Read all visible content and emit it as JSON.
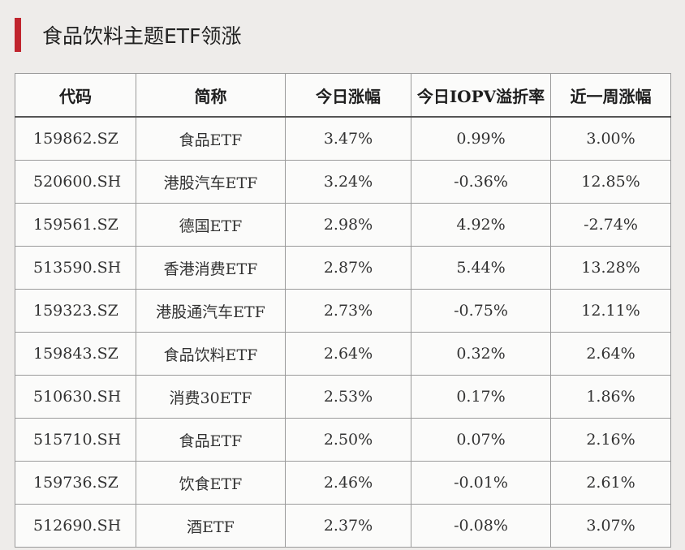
{
  "title": "食品饮料主题ETF领涨",
  "colors": {
    "accent": "#c0252e",
    "background": "#eeecea"
  },
  "table": {
    "headers": [
      "代码",
      "简称",
      "今日涨幅",
      "今日IOPV溢折率",
      "近一周涨幅"
    ],
    "rows": [
      [
        "159862.SZ",
        "食品ETF",
        "3.47%",
        "0.99%",
        "3.00%"
      ],
      [
        "520600.SH",
        "港股汽车ETF",
        "3.24%",
        "-0.36%",
        "12.85%"
      ],
      [
        "159561.SZ",
        "德国ETF",
        "2.98%",
        "4.92%",
        "-2.74%"
      ],
      [
        "513590.SH",
        "香港消费ETF",
        "2.87%",
        "5.44%",
        "13.28%"
      ],
      [
        "159323.SZ",
        "港股通汽车ETF",
        "2.73%",
        "-0.75%",
        "12.11%"
      ],
      [
        "159843.SZ",
        "食品饮料ETF",
        "2.64%",
        "0.32%",
        "2.64%"
      ],
      [
        "510630.SH",
        "消费30ETF",
        "2.53%",
        "0.17%",
        "1.86%"
      ],
      [
        "515710.SH",
        "食品ETF",
        "2.50%",
        "0.07%",
        "2.16%"
      ],
      [
        "159736.SZ",
        "饮食ETF",
        "2.46%",
        "-0.01%",
        "2.61%"
      ],
      [
        "512690.SH",
        "酒ETF",
        "2.37%",
        "-0.08%",
        "3.07%"
      ]
    ]
  }
}
